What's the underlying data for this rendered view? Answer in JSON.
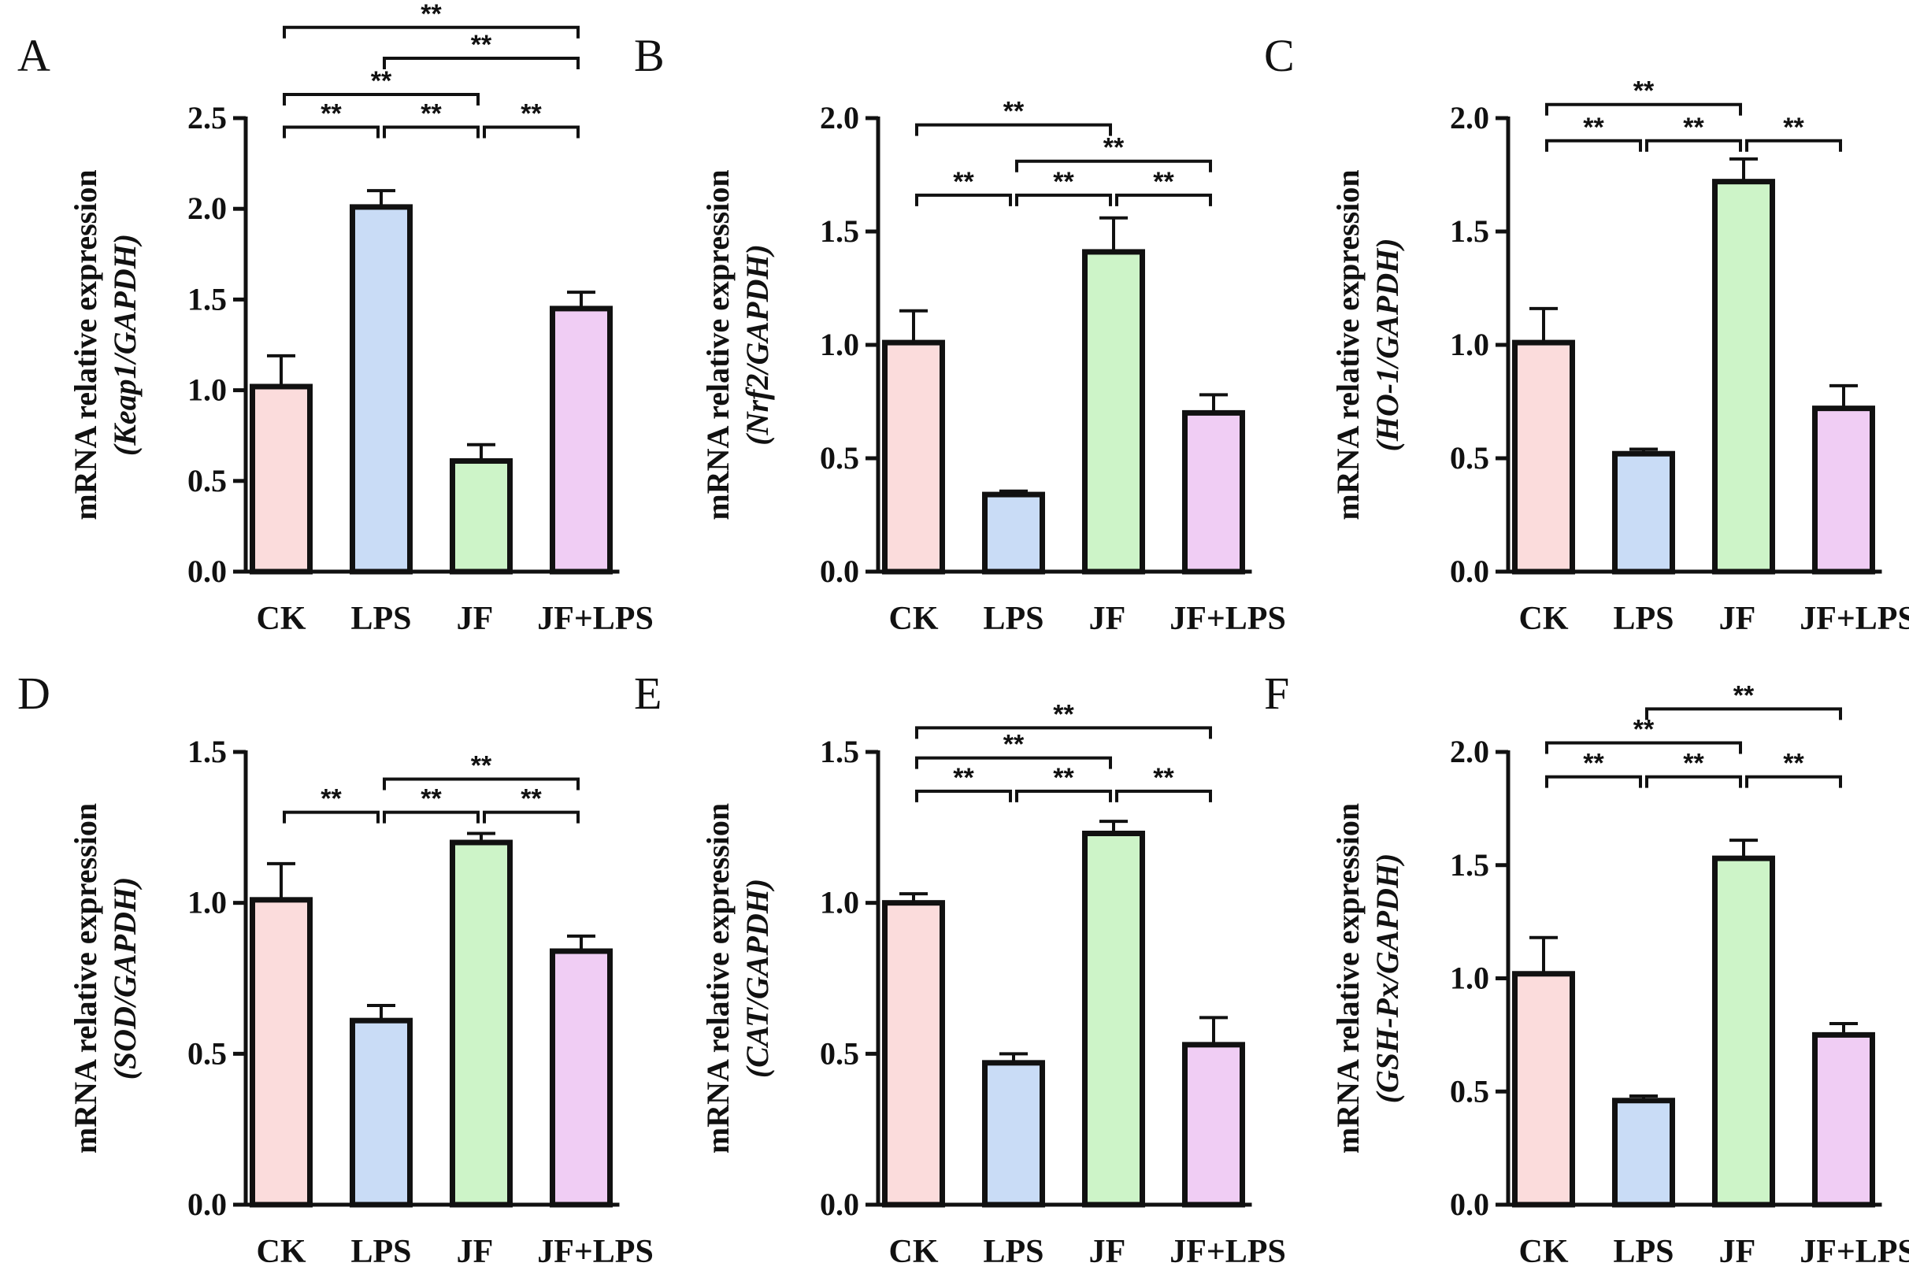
{
  "figure": {
    "colors": {
      "CK": "#fbdcdc",
      "LPS": "#c9dcf6",
      "JF": "#cdf4c8",
      "JF+LPS": "#f0cdf4",
      "ink": "#111111"
    }
  },
  "chart_data": [
    {
      "panel": "A",
      "type": "bar",
      "categories": [
        "CK",
        "LPS",
        "JF",
        "JF+LPS"
      ],
      "values": [
        1.02,
        2.01,
        0.61,
        1.45
      ],
      "errors": [
        0.17,
        0.09,
        0.09,
        0.09
      ],
      "ylim": [
        0,
        2.5
      ],
      "yticks": [
        0.0,
        0.5,
        1.0,
        1.5,
        2.0,
        2.5
      ],
      "ytick_labels": [
        "0.0",
        "0.5",
        "1.0",
        "1.5",
        "2.0",
        "2.5"
      ],
      "ylabel_line1": "mRNA relative expression",
      "ylabel_line2": "(Keap1/GAPDH)",
      "significance": [
        {
          "from": 0,
          "to": 3,
          "label": "**",
          "level": 3.0
        },
        {
          "from": 1,
          "to": 3,
          "label": "**",
          "level": 2.83
        },
        {
          "from": 0,
          "to": 2,
          "label": "**",
          "level": 2.63
        },
        {
          "from": 0,
          "to": 1,
          "label": "**",
          "level": 2.45
        },
        {
          "from": 1,
          "to": 2,
          "label": "**",
          "level": 2.45
        },
        {
          "from": 2,
          "to": 3,
          "label": "**",
          "level": 2.45
        }
      ]
    },
    {
      "panel": "B",
      "type": "bar",
      "categories": [
        "CK",
        "LPS",
        "JF",
        "JF+LPS"
      ],
      "values": [
        1.01,
        0.34,
        1.41,
        0.7
      ],
      "errors": [
        0.14,
        0.015,
        0.15,
        0.08
      ],
      "ylim": [
        0,
        2.0
      ],
      "yticks": [
        0.0,
        0.5,
        1.0,
        1.5,
        2.0
      ],
      "ytick_labels": [
        "0.0",
        "0.5",
        "1.0",
        "1.5",
        "2.0"
      ],
      "ylabel_line1": "mRNA relative expression",
      "ylabel_line2": "(Nrf2/GAPDH)",
      "significance": [
        {
          "from": 0,
          "to": 2,
          "label": "**",
          "level": 1.97
        },
        {
          "from": 1,
          "to": 3,
          "label": "**",
          "level": 1.81
        },
        {
          "from": 0,
          "to": 1,
          "label": "**",
          "level": 1.66
        },
        {
          "from": 1,
          "to": 2,
          "label": "**",
          "level": 1.66
        },
        {
          "from": 2,
          "to": 3,
          "label": "**",
          "level": 1.66
        }
      ]
    },
    {
      "panel": "C",
      "type": "bar",
      "categories": [
        "CK",
        "LPS",
        "JF",
        "JF+LPS"
      ],
      "values": [
        1.01,
        0.52,
        1.72,
        0.72
      ],
      "errors": [
        0.15,
        0.02,
        0.1,
        0.1
      ],
      "ylim": [
        0,
        2.0
      ],
      "yticks": [
        0.0,
        0.5,
        1.0,
        1.5,
        2.0
      ],
      "ytick_labels": [
        "0.0",
        "0.5",
        "1.0",
        "1.5",
        "2.0"
      ],
      "ylabel_line1": "mRNA relative expression",
      "ylabel_line2": "(HO-1/GAPDH)",
      "significance": [
        {
          "from": 0,
          "to": 2,
          "label": "**",
          "level": 2.06
        },
        {
          "from": 0,
          "to": 1,
          "label": "**",
          "level": 1.9
        },
        {
          "from": 1,
          "to": 2,
          "label": "**",
          "level": 1.9
        },
        {
          "from": 2,
          "to": 3,
          "label": "**",
          "level": 1.9
        }
      ]
    },
    {
      "panel": "D",
      "type": "bar",
      "categories": [
        "CK",
        "LPS",
        "JF",
        "JF+LPS"
      ],
      "values": [
        1.01,
        0.61,
        1.2,
        0.84
      ],
      "errors": [
        0.12,
        0.05,
        0.03,
        0.05
      ],
      "ylim": [
        0,
        1.5
      ],
      "yticks": [
        0.0,
        0.5,
        1.0,
        1.5
      ],
      "ytick_labels": [
        "0.0",
        "0.5",
        "1.0",
        "1.5"
      ],
      "ylabel_line1": "mRNA relative expression",
      "ylabel_line2": "(SOD/GAPDH)",
      "significance": [
        {
          "from": 1,
          "to": 3,
          "label": "**",
          "level": 1.41
        },
        {
          "from": 0,
          "to": 1,
          "label": "**",
          "level": 1.3
        },
        {
          "from": 1,
          "to": 2,
          "label": "**",
          "level": 1.3
        },
        {
          "from": 2,
          "to": 3,
          "label": "**",
          "level": 1.3
        }
      ]
    },
    {
      "panel": "E",
      "type": "bar",
      "categories": [
        "CK",
        "LPS",
        "JF",
        "JF+LPS"
      ],
      "values": [
        1.0,
        0.47,
        1.23,
        0.53
      ],
      "errors": [
        0.03,
        0.03,
        0.04,
        0.09
      ],
      "ylim": [
        0,
        1.5
      ],
      "yticks": [
        0.0,
        0.5,
        1.0,
        1.5
      ],
      "ytick_labels": [
        "0.0",
        "0.5",
        "1.0",
        "1.5"
      ],
      "ylabel_line1": "mRNA relative expression",
      "ylabel_line2": "(CAT/GAPDH)",
      "significance": [
        {
          "from": 0,
          "to": 3,
          "label": "**",
          "level": 1.58
        },
        {
          "from": 0,
          "to": 2,
          "label": "**",
          "level": 1.48
        },
        {
          "from": 0,
          "to": 1,
          "label": "**",
          "level": 1.37
        },
        {
          "from": 1,
          "to": 2,
          "label": "**",
          "level": 1.37
        },
        {
          "from": 2,
          "to": 3,
          "label": "**",
          "level": 1.37
        }
      ]
    },
    {
      "panel": "F",
      "type": "bar",
      "categories": [
        "CK",
        "LPS",
        "JF",
        "JF+LPS"
      ],
      "values": [
        1.02,
        0.46,
        1.53,
        0.75
      ],
      "errors": [
        0.16,
        0.02,
        0.08,
        0.05
      ],
      "ylim": [
        0,
        2.0
      ],
      "yticks": [
        0.0,
        0.5,
        1.0,
        1.5,
        2.0
      ],
      "ytick_labels": [
        "0.0",
        "0.5",
        "1.0",
        "1.5",
        "2.0"
      ],
      "ylabel_line1": "mRNA relative expression",
      "ylabel_line2": "(GSH-Px/GAPDH)",
      "significance": [
        {
          "from": 1,
          "to": 3,
          "label": "**",
          "level": 2.19
        },
        {
          "from": 0,
          "to": 2,
          "label": "**",
          "level": 2.04
        },
        {
          "from": 0,
          "to": 1,
          "label": "**",
          "level": 1.89
        },
        {
          "from": 1,
          "to": 2,
          "label": "**",
          "level": 1.89
        },
        {
          "from": 2,
          "to": 3,
          "label": "**",
          "level": 1.89
        }
      ]
    }
  ]
}
